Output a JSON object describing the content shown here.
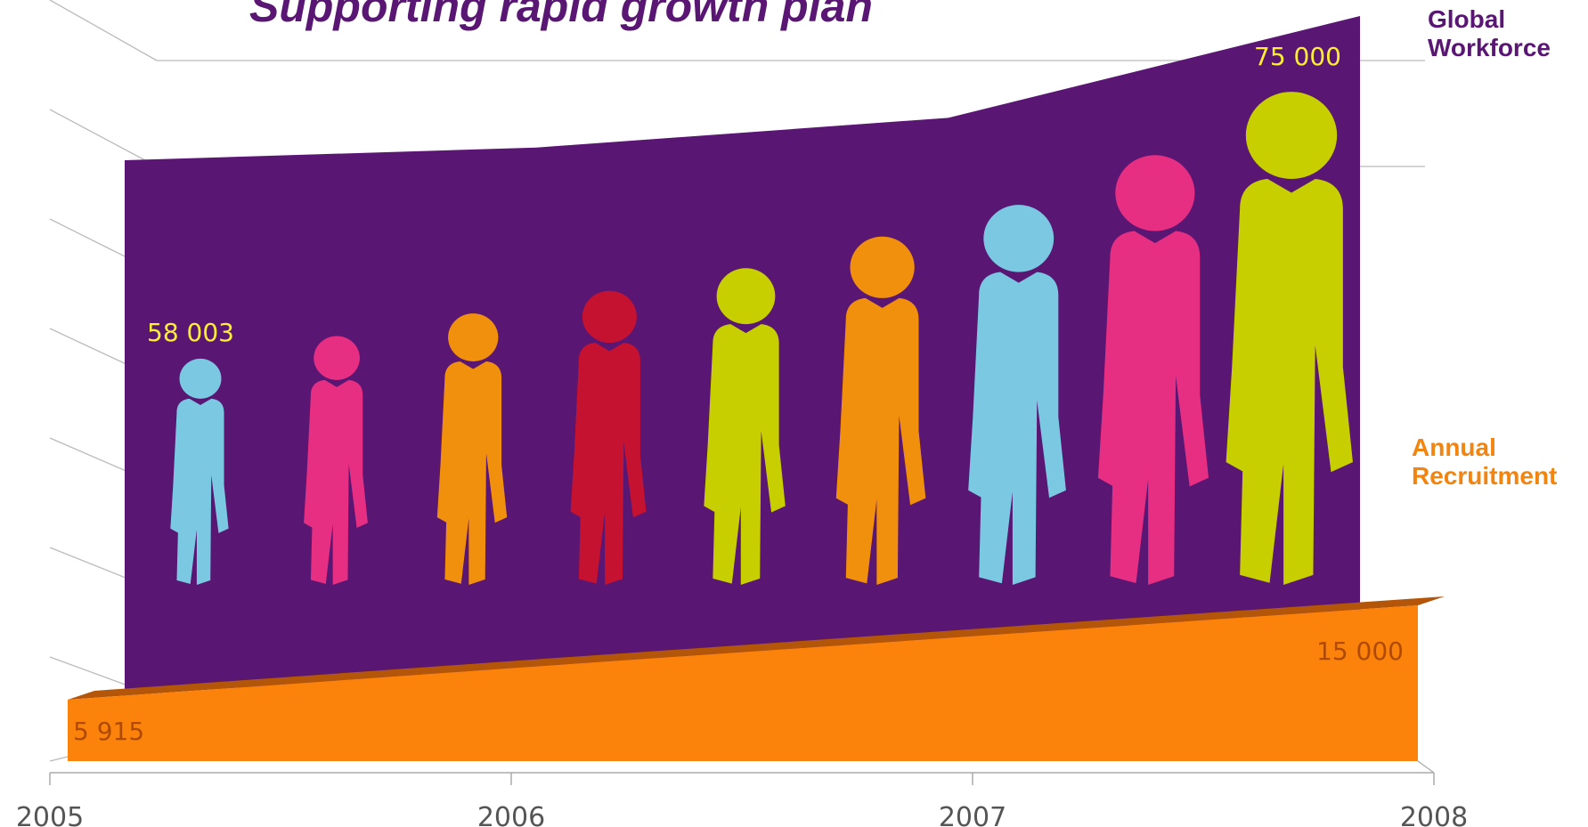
{
  "chart_data": {
    "type": "area",
    "title": "Supporting rapid growth plan",
    "x": [
      "2005",
      "2006",
      "2007",
      "2008"
    ],
    "series": [
      {
        "name": "Global Workforce",
        "color": "#5a1673",
        "values": [
          58003,
          59500,
          63000,
          75000
        ],
        "labels": {
          "start": "58 003",
          "end": "75 000"
        },
        "label_color": "#ffee33"
      },
      {
        "name": "Annual Recruitment",
        "color": "#fb830b",
        "values": [
          5915,
          9000,
          12000,
          15000
        ],
        "labels": {
          "start": "5 915",
          "end": "15 000"
        },
        "label_color": "#b04a00"
      }
    ],
    "legend": [
      {
        "line1": "Global",
        "line2": "Workforce",
        "color": "#5a1673"
      },
      {
        "line1": "Annual",
        "line2": "Recruitment",
        "color": "#f28410"
      }
    ],
    "figure_colors": [
      "#7bc8e3",
      "#e62e82",
      "#f0900c",
      "#c41230",
      "#c7cf00",
      "#f0900c",
      "#7bc8e3",
      "#e62e82",
      "#c7cf00"
    ],
    "grid": true
  }
}
